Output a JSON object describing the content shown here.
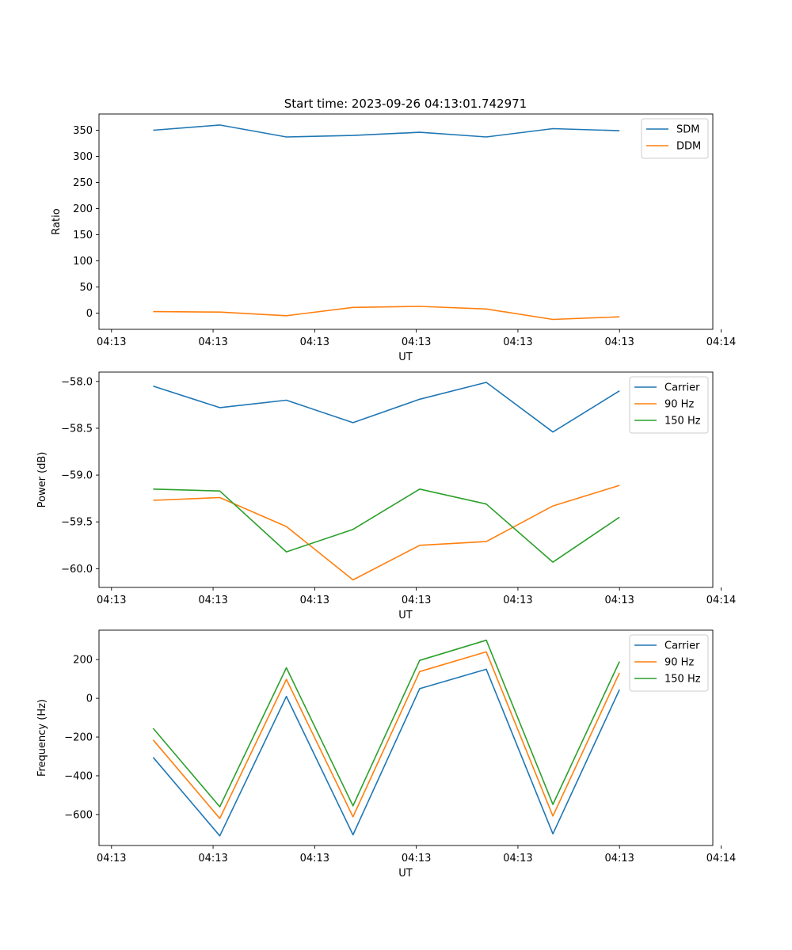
{
  "figure": {
    "title": "Start time: 2023-09-26 04:13:01.742971"
  },
  "chart_data": [
    {
      "type": "line",
      "title": "Start time: 2023-09-26 04:13:01.742971",
      "xlabel": "UT",
      "ylabel": "Ratio",
      "x": [
        1,
        2,
        3,
        4,
        5,
        6,
        7,
        8
      ],
      "xlim": [
        0.1875,
        9.4
      ],
      "xticks": [
        0.375,
        1.9,
        3.425,
        4.95,
        6.475,
        8.0,
        9.525
      ],
      "xtick_labels": [
        "04:13",
        "04:13",
        "04:13",
        "04:13",
        "04:13",
        "04:13",
        "04:14"
      ],
      "ylim": [
        -31,
        381
      ],
      "yticks": [
        0,
        50,
        100,
        150,
        200,
        250,
        300,
        350
      ],
      "ytick_labels": [
        "0",
        "50",
        "100",
        "150",
        "200",
        "250",
        "300",
        "350"
      ],
      "legend_position": "top-right",
      "series": [
        {
          "name": "SDM",
          "color": "#1f77b4",
          "values": [
            350,
            360,
            337,
            340,
            346,
            337,
            353,
            349
          ]
        },
        {
          "name": "DDM",
          "color": "#ff7f0e",
          "values": [
            3,
            2,
            -5,
            11,
            13,
            8,
            -12,
            -7
          ]
        }
      ]
    },
    {
      "type": "line",
      "title": "",
      "xlabel": "UT",
      "ylabel": "Power (dB)",
      "x": [
        1,
        2,
        3,
        4,
        5,
        6,
        7,
        8
      ],
      "xlim": [
        0.1875,
        9.4
      ],
      "xticks": [
        0.375,
        1.9,
        3.425,
        4.95,
        6.475,
        8.0,
        9.525
      ],
      "xtick_labels": [
        "04:13",
        "04:13",
        "04:13",
        "04:13",
        "04:13",
        "04:13",
        "04:14"
      ],
      "ylim": [
        -60.2,
        -57.9
      ],
      "yticks": [
        -60.0,
        -59.5,
        -59.0,
        -58.5,
        -58.0
      ],
      "ytick_labels": [
        "−60.0",
        "−59.5",
        "−59.0",
        "−58.5",
        "−58.0"
      ],
      "legend_position": "top-right",
      "series": [
        {
          "name": "Carrier",
          "color": "#1f77b4",
          "values": [
            -58.05,
            -58.28,
            -58.2,
            -58.44,
            -58.19,
            -58.01,
            -58.54,
            -58.1
          ]
        },
        {
          "name": "90 Hz",
          "color": "#ff7f0e",
          "values": [
            -59.27,
            -59.24,
            -59.55,
            -60.12,
            -59.75,
            -59.71,
            -59.33,
            -59.11
          ]
        },
        {
          "name": "150 Hz",
          "color": "#2ca02c",
          "values": [
            -59.15,
            -59.17,
            -59.82,
            -59.58,
            -59.15,
            -59.31,
            -59.93,
            -59.45
          ]
        }
      ]
    },
    {
      "type": "line",
      "title": "",
      "xlabel": "UT",
      "ylabel": "Frequency (Hz)",
      "x": [
        1,
        2,
        3,
        4,
        5,
        6,
        7,
        8
      ],
      "xlim": [
        0.1875,
        9.4
      ],
      "xticks": [
        0.375,
        1.9,
        3.425,
        4.95,
        6.475,
        8.0,
        9.525
      ],
      "xtick_labels": [
        "04:13",
        "04:13",
        "04:13",
        "04:13",
        "04:13",
        "04:13",
        "04:14"
      ],
      "ylim": [
        -760,
        352
      ],
      "yticks": [
        -600,
        -400,
        -200,
        0,
        200
      ],
      "ytick_labels": [
        "−600",
        "−400",
        "−200",
        "0",
        "200"
      ],
      "legend_position": "top-right",
      "series": [
        {
          "name": "Carrier",
          "color": "#1f77b4",
          "values": [
            -305,
            -710,
            10,
            -705,
            50,
            150,
            -700,
            45
          ]
        },
        {
          "name": "90 Hz",
          "color": "#ff7f0e",
          "values": [
            -215,
            -620,
            98,
            -612,
            138,
            240,
            -608,
            132
          ]
        },
        {
          "name": "150 Hz",
          "color": "#2ca02c",
          "values": [
            -155,
            -560,
            158,
            -555,
            196,
            300,
            -548,
            190
          ]
        }
      ]
    }
  ]
}
